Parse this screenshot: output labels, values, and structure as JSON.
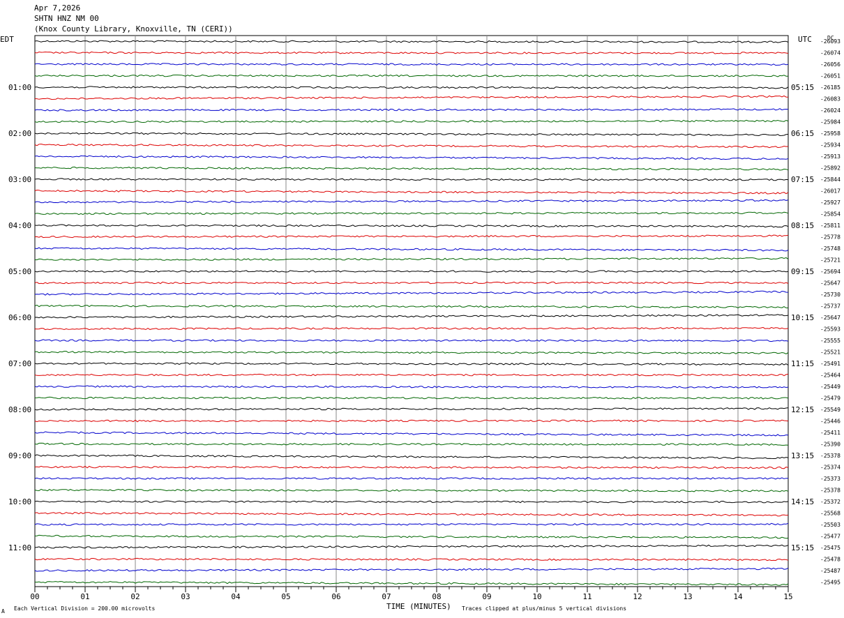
{
  "header": {
    "line1": "Apr 7,2026",
    "line2": "SHTN HNZ NM 00",
    "line3": "(Knox County Library, Knoxville, TN (CERI))"
  },
  "left_axis_label": "EDT",
  "right_axis_label": "UTC",
  "dc_label": "DC",
  "footer": {
    "scale_note": "Each Vertical Division =  200.00 microvolts",
    "xlabel": "TIME (MINUTES)",
    "clip_note": "Traces clipped at plus/minus 5 vertical divisions",
    "corner_mark": "A"
  },
  "colors": [
    "#000000",
    "#dd0000",
    "#0000cc",
    "#006600"
  ],
  "chart_data": {
    "type": "line",
    "title": "SHTN HNZ NM 00",
    "xlabel": "TIME (MINUTES)",
    "xlim": [
      0,
      15
    ],
    "x_ticks": [
      "00",
      "01",
      "02",
      "03",
      "04",
      "05",
      "06",
      "07",
      "08",
      "09",
      "10",
      "11",
      "12",
      "13",
      "14",
      "15"
    ],
    "grid": "vertical lines at each minute",
    "left_hour_labels": [
      "01:00",
      "02:00",
      "03:00",
      "04:00",
      "05:00",
      "06:00",
      "07:00",
      "08:00",
      "09:00",
      "10:00",
      "11:00"
    ],
    "right_hour_labels": [
      "05:15",
      "06:15",
      "07:15",
      "08:15",
      "09:15",
      "10:15",
      "11:15",
      "12:15",
      "13:15",
      "14:15",
      "15:15"
    ],
    "dc_offsets": [
      -26093,
      -26074,
      -26056,
      -26051,
      -26185,
      -26083,
      -26024,
      -25984,
      -25958,
      -25934,
      -25913,
      -25892,
      -25844,
      -26017,
      -25927,
      -25854,
      -25811,
      -25778,
      -25748,
      -25721,
      -25694,
      -25647,
      -25730,
      -25737,
      -25647,
      -25593,
      -25555,
      -25521,
      -25491,
      -25464,
      -25449,
      -25479,
      -25549,
      -25446,
      -25411,
      -25390,
      -25378,
      -25374,
      -25373,
      -25378,
      -25372,
      -25568,
      -25503,
      -25477,
      -25475,
      -25478,
      -25487,
      -25495
    ],
    "trace_color_cycle": [
      "black",
      "red",
      "blue",
      "green"
    ]
  }
}
